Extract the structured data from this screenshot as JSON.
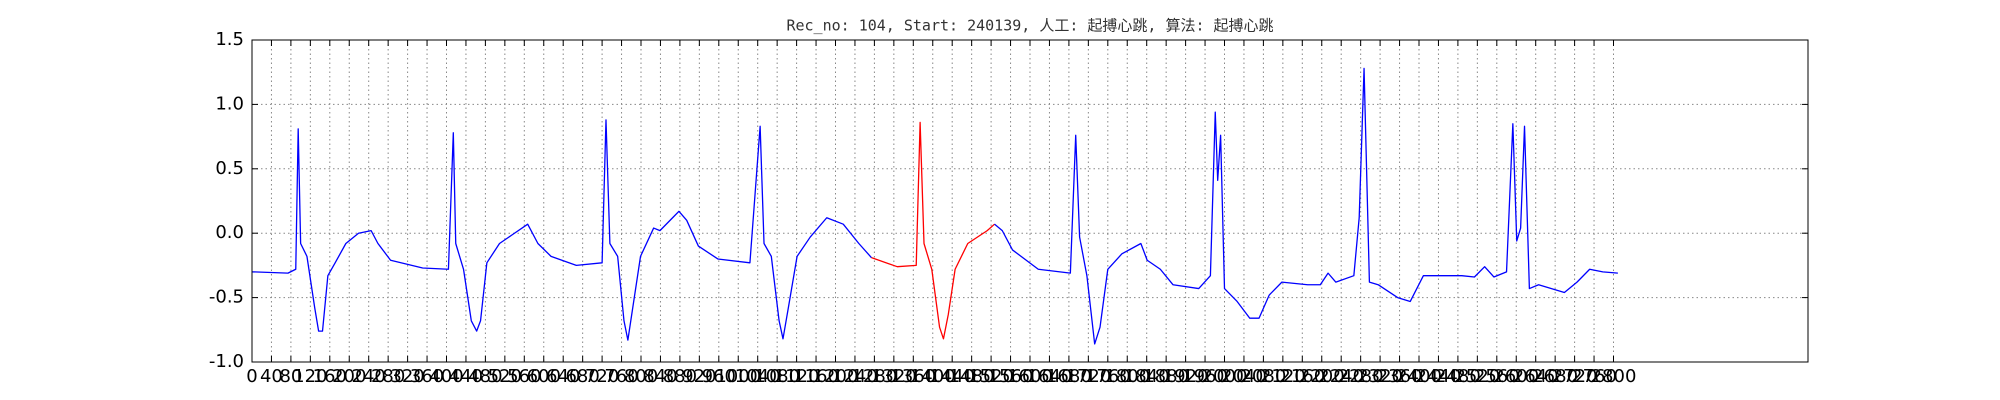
{
  "chart_data": {
    "type": "line",
    "title": "Rec_no: 104, Start: 240139, 人工: 起搏心跳, 算法: 起搏心跳",
    "series": [
      {
        "color": "#0000ff",
        "x": [
          0,
          74,
          90,
          95,
          100,
          113,
          129,
          137,
          145,
          156,
          171,
          193,
          219,
          245,
          259,
          285,
          351,
          404,
          414,
          419,
          435,
          451,
          462,
          470,
          483,
          509,
          536,
          567,
          588,
          615,
          667,
          720,
          728,
          736,
          752,
          765,
          773,
          783,
          799,
          826,
          839,
          865,
          878,
          894,
          918,
          958,
          1024,
          1045,
          1053,
          1068,
          1084,
          1092,
          1103,
          1121,
          1148,
          1182,
          1216,
          1248,
          1274
        ],
        "values": [
          -0.3,
          -0.31,
          -0.28,
          0.81,
          -0.08,
          -0.18,
          -0.58,
          -0.76,
          -0.76,
          -0.33,
          -0.23,
          -0.08,
          0.0,
          0.02,
          -0.08,
          -0.21,
          -0.27,
          -0.28,
          0.78,
          -0.08,
          -0.28,
          -0.68,
          -0.76,
          -0.68,
          -0.23,
          -0.08,
          -0.01,
          0.07,
          -0.08,
          -0.18,
          -0.25,
          -0.23,
          0.88,
          -0.08,
          -0.18,
          -0.68,
          -0.83,
          -0.58,
          -0.18,
          0.04,
          0.02,
          0.12,
          0.17,
          0.1,
          -0.1,
          -0.2,
          -0.23,
          0.83,
          -0.08,
          -0.18,
          -0.68,
          -0.82,
          -0.58,
          -0.18,
          -0.03,
          0.12,
          0.07,
          -0.08,
          -0.19
        ]
      },
      {
        "color": "#ff0000",
        "x": [
          1274,
          1327,
          1366,
          1374,
          1382,
          1398,
          1414,
          1422,
          1432,
          1446,
          1472,
          1512,
          1527
        ],
        "values": [
          -0.19,
          -0.26,
          -0.25,
          0.86,
          -0.08,
          -0.28,
          -0.73,
          -0.82,
          -0.63,
          -0.28,
          -0.08,
          0.02,
          0.07
        ]
      },
      {
        "color": "#0000ff",
        "x": [
          1527,
          1543,
          1564,
          1617,
          1683,
          1694,
          1702,
          1717,
          1733,
          1744,
          1760,
          1789,
          1828,
          1841,
          1868,
          1894,
          1947,
          1971,
          1981,
          1986,
          1992,
          2000,
          2026,
          2052,
          2071,
          2092,
          2118,
          2171,
          2197,
          2213,
          2229,
          2266,
          2277,
          2287,
          2298,
          2316,
          2356,
          2382,
          2409,
          2435,
          2488,
          2514,
          2535,
          2554,
          2580,
          2593,
          2601,
          2609,
          2617,
          2627,
          2646,
          2699,
          2725,
          2751,
          2778,
          2809
        ],
        "values": [
          0.07,
          0.02,
          -0.13,
          -0.28,
          -0.31,
          0.76,
          -0.03,
          -0.33,
          -0.86,
          -0.73,
          -0.28,
          -0.16,
          -0.08,
          -0.21,
          -0.28,
          -0.4,
          -0.43,
          -0.33,
          0.94,
          0.41,
          0.76,
          -0.43,
          -0.53,
          -0.66,
          -0.66,
          -0.48,
          -0.38,
          -0.4,
          -0.4,
          -0.31,
          -0.38,
          -0.33,
          0.12,
          1.28,
          -0.38,
          -0.4,
          -0.5,
          -0.53,
          -0.33,
          -0.33,
          -0.33,
          -0.34,
          -0.26,
          -0.34,
          -0.3,
          0.85,
          -0.06,
          0.04,
          0.83,
          -0.43,
          -0.4,
          -0.46,
          -0.38,
          -0.28,
          -0.3,
          -0.31
        ]
      }
    ],
    "xlim": [
      0,
      3200
    ],
    "xticks": [
      0,
      40,
      80,
      120,
      160,
      200,
      240,
      280,
      320,
      360,
      400,
      440,
      480,
      520,
      560,
      600,
      640,
      680,
      720,
      760,
      800,
      840,
      880,
      920,
      960,
      1000,
      1040,
      1080,
      1120,
      1160,
      1200,
      1240,
      1280,
      1320,
      1360,
      1400,
      1440,
      1480,
      1520,
      1560,
      1600,
      1640,
      1680,
      1720,
      1760,
      1800,
      1840,
      1880,
      1920,
      1960,
      2000,
      2040,
      2080,
      2120,
      2160,
      2200,
      2240,
      2280,
      2320,
      2360,
      2400,
      2440,
      2480,
      2520,
      2560,
      2600,
      2640,
      2680,
      2720,
      2760,
      2800
    ],
    "ylim": [
      -1.0,
      1.5
    ],
    "yticks": [
      {
        "value": -1.0,
        "label": "-1.0"
      },
      {
        "value": -0.5,
        "label": "-0.5"
      },
      {
        "value": 0.0,
        "label": "0.0"
      },
      {
        "value": 0.5,
        "label": "0.5"
      },
      {
        "value": 1.0,
        "label": "1.0"
      },
      {
        "value": 1.5,
        "label": "1.5"
      }
    ],
    "grid": true
  }
}
